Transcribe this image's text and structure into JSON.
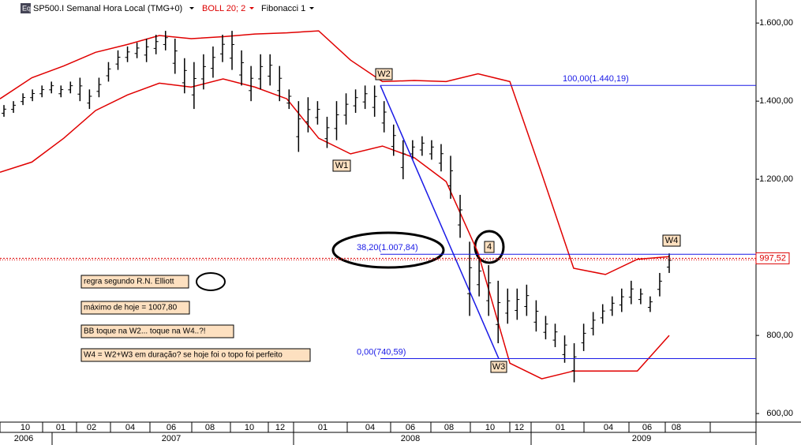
{
  "header": {
    "icon": "Eq",
    "symbol": "SP500.I Semanal Hora Local (TMG+0)",
    "indicator": "BOLL 20; 2",
    "tool": "Fibonacci 1"
  },
  "chart_data": {
    "type": "range-bar",
    "low": [
      1360,
      1370,
      1390,
      1400,
      1410,
      1420,
      1410,
      1420,
      1400,
      1380,
      1410,
      1450,
      1480,
      1500,
      1510,
      1500,
      1520,
      1530,
      1470,
      1420,
      1380,
      1430,
      1460,
      1500,
      1480,
      1440,
      1400,
      1430,
      1440,
      1400,
      1380,
      1270,
      1320,
      1340,
      1280,
      1300,
      1340,
      1370,
      1380,
      1360,
      1320,
      1260,
      1200,
      1250,
      1260,
      1250,
      1220,
      1150,
      1050,
      850,
      900,
      850,
      780,
      830,
      840,
      850,
      810,
      790,
      770,
      730,
      680,
      760,
      800,
      830,
      850,
      860,
      880,
      880,
      860,
      900,
      960
    ],
    "high": [
      1390,
      1400,
      1420,
      1430,
      1440,
      1450,
      1440,
      1450,
      1460,
      1430,
      1460,
      1500,
      1530,
      1540,
      1550,
      1560,
      1570,
      1580,
      1560,
      1510,
      1500,
      1520,
      1540,
      1570,
      1580,
      1530,
      1490,
      1520,
      1520,
      1490,
      1430,
      1400,
      1410,
      1400,
      1360,
      1400,
      1420,
      1430,
      1440,
      1440,
      1400,
      1340,
      1300,
      1300,
      1310,
      1300,
      1290,
      1260,
      1160,
      1040,
      1000,
      980,
      940,
      920,
      920,
      930,
      890,
      850,
      830,
      800,
      780,
      830,
      860,
      880,
      900,
      920,
      940,
      920,
      900,
      960,
      1010
    ],
    "bar_color": "#000000",
    "bollinger_upper": [
      1406,
      1460,
      1490,
      1525,
      1545,
      1568,
      1560,
      1565,
      1572,
      1575,
      1580,
      1505,
      1450,
      1453,
      1450,
      1470,
      1450,
      1214,
      972,
      956,
      995,
      1002
    ],
    "bollinger_lower": [
      1218,
      1244,
      1305,
      1376,
      1416,
      1446,
      1436,
      1457,
      1436,
      1406,
      1305,
      1265,
      1285,
      1255,
      1194,
      1012,
      729,
      689,
      709,
      709,
      709,
      800
    ],
    "bollinger_color": "#e00000",
    "ylim": [
      578,
      1659
    ],
    "yticks": [
      {
        "value": 600,
        "label": "600,00"
      },
      {
        "value": 800,
        "label": "800,00"
      },
      {
        "value": 1200,
        "label": "1.200,00"
      },
      {
        "value": 1400,
        "label": "1.400,00"
      },
      {
        "value": 1600,
        "label": "1.600,00"
      }
    ],
    "months": [
      "10",
      "01",
      "02",
      "04",
      "06",
      "08",
      "10",
      "12",
      "01",
      "04",
      "06",
      "08",
      "10",
      "12",
      "01",
      "04",
      "06",
      "08"
    ],
    "years": [
      "2006",
      "2007",
      "2008",
      "2009"
    ],
    "fibonacci": [
      {
        "value": 1440.19,
        "label": "100,00(1.440,19)"
      },
      {
        "value": 1007.84,
        "label": "38,20(1.007,84)"
      },
      {
        "value": 740.59,
        "label": "0,00(740,59)"
      }
    ],
    "fib_color": "#1a1ae6",
    "last_price": {
      "value": 997.52,
      "label": "997,52"
    },
    "waves": [
      "W1",
      "W2",
      "W3",
      "W4",
      "4"
    ],
    "notes": [
      "regra segundo R.N. Elliott",
      "máximo de hoje = 1007,80",
      "BB toque na  W2... toque na W4..?!",
      "W4 = W2+W3 em duração? se hoje foi o topo foi perfeito"
    ]
  }
}
